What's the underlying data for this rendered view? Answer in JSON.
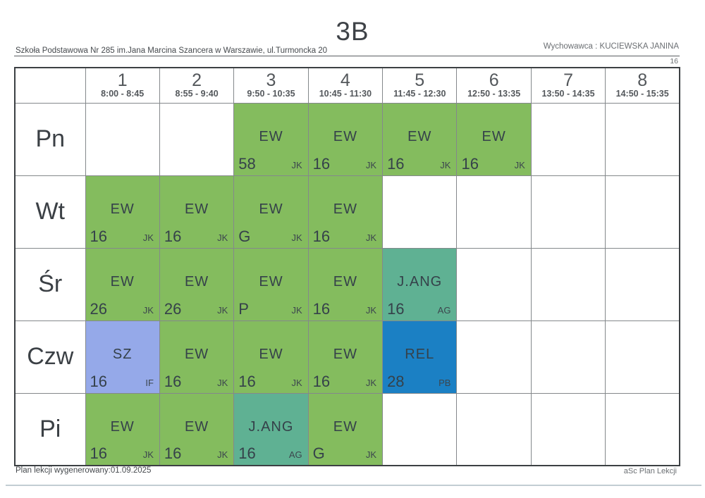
{
  "header": {
    "class_name": "3B",
    "school": "Szkoła Podstawowa Nr 285 im.Jana Marcina Szancera w Warszawie, ul.Turmoncka 20",
    "tutor": "Wychowawca : KUCIEWSKA JANINA",
    "room": "16"
  },
  "footer": {
    "generated": "Plan lekcji wygenerowany:01.09.2025",
    "brand": "aSc Plan Lekcji"
  },
  "colors": {
    "ew": "#84bc5e",
    "jang": "#5fb193",
    "rel": "#1b80c4",
    "sz": "#95a9e9"
  },
  "periods": [
    {
      "num": "1",
      "time": "8:00 - 8:45"
    },
    {
      "num": "2",
      "time": "8:55 - 9:40"
    },
    {
      "num": "3",
      "time": "9:50 - 10:35"
    },
    {
      "num": "4",
      "time": "10:45 - 11:30"
    },
    {
      "num": "5",
      "time": "11:45 - 12:30"
    },
    {
      "num": "6",
      "time": "12:50 - 13:35"
    },
    {
      "num": "7",
      "time": "13:50 - 14:35"
    },
    {
      "num": "8",
      "time": "14:50 - 15:35"
    }
  ],
  "days": [
    {
      "label": "Pn",
      "lessons": [
        null,
        null,
        {
          "subject": "EW",
          "room": "58",
          "teacher": "JK",
          "color": "ew"
        },
        {
          "subject": "EW",
          "room": "16",
          "teacher": "JK",
          "color": "ew"
        },
        {
          "subject": "EW",
          "room": "16",
          "teacher": "JK",
          "color": "ew"
        },
        {
          "subject": "EW",
          "room": "16",
          "teacher": "JK",
          "color": "ew"
        },
        null,
        null
      ]
    },
    {
      "label": "Wt",
      "lessons": [
        {
          "subject": "EW",
          "room": "16",
          "teacher": "JK",
          "color": "ew"
        },
        {
          "subject": "EW",
          "room": "16",
          "teacher": "JK",
          "color": "ew"
        },
        {
          "subject": "EW",
          "room": "G",
          "teacher": "JK",
          "color": "ew"
        },
        {
          "subject": "EW",
          "room": "16",
          "teacher": "JK",
          "color": "ew"
        },
        null,
        null,
        null,
        null
      ]
    },
    {
      "label": "Śr",
      "lessons": [
        {
          "subject": "EW",
          "room": "26",
          "teacher": "JK",
          "color": "ew"
        },
        {
          "subject": "EW",
          "room": "26",
          "teacher": "JK",
          "color": "ew"
        },
        {
          "subject": "EW",
          "room": "P",
          "teacher": "JK",
          "color": "ew"
        },
        {
          "subject": "EW",
          "room": "16",
          "teacher": "JK",
          "color": "ew"
        },
        {
          "subject": "J.ANG",
          "room": "16",
          "teacher": "AG",
          "color": "jang"
        },
        null,
        null,
        null
      ]
    },
    {
      "label": "Czw",
      "lessons": [
        {
          "subject": "SZ",
          "room": "16",
          "teacher": "IF",
          "color": "sz"
        },
        {
          "subject": "EW",
          "room": "16",
          "teacher": "JK",
          "color": "ew"
        },
        {
          "subject": "EW",
          "room": "16",
          "teacher": "JK",
          "color": "ew"
        },
        {
          "subject": "EW",
          "room": "16",
          "teacher": "JK",
          "color": "ew"
        },
        {
          "subject": "REL",
          "room": "28",
          "teacher": "PB",
          "color": "rel"
        },
        null,
        null,
        null
      ]
    },
    {
      "label": "Pi",
      "lessons": [
        {
          "subject": "EW",
          "room": "16",
          "teacher": "JK",
          "color": "ew"
        },
        {
          "subject": "EW",
          "room": "16",
          "teacher": "JK",
          "color": "ew"
        },
        {
          "subject": "J.ANG",
          "room": "16",
          "teacher": "AG",
          "color": "jang"
        },
        {
          "subject": "EW",
          "room": "G",
          "teacher": "JK",
          "color": "ew"
        },
        null,
        null,
        null,
        null
      ]
    }
  ]
}
